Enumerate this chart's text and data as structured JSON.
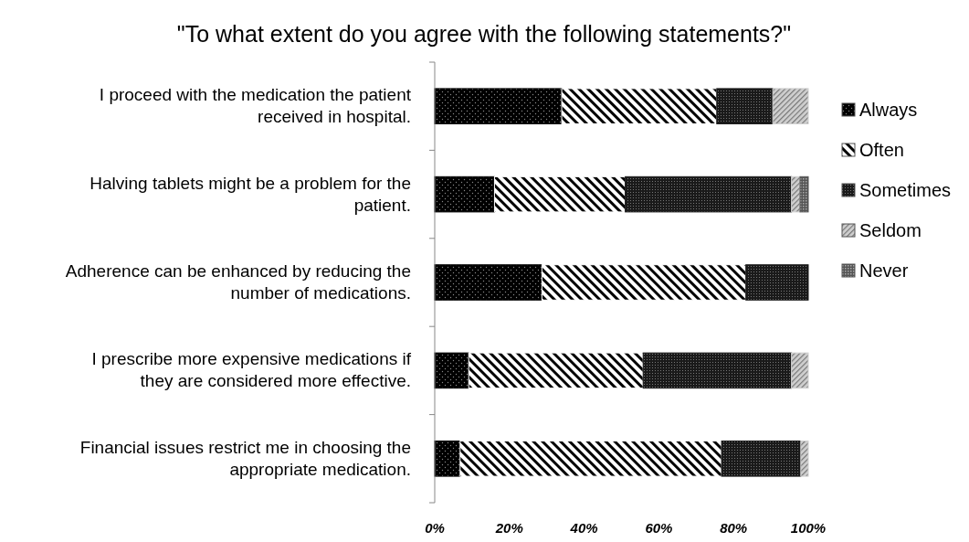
{
  "chart_data": {
    "type": "bar",
    "orientation": "horizontal",
    "stacked": true,
    "title": "\"To what extent do you agree with the following statements?\"",
    "categories": [
      "I proceed with the medication the patient received in hospital.",
      "Halving tablets might be a problem for the patient.",
      "Adherence can be enhanced by reducing the number of medications.",
      "I prescribe more expensive medications if they are considered more effective.",
      "Financial issues restrict me in choosing the appropriate medication."
    ],
    "series": [
      {
        "name": "Always",
        "color": "#000000",
        "values": [
          34,
          16,
          28.7,
          9.1,
          6.8
        ]
      },
      {
        "name": "Often",
        "color": "#ffffff",
        "values": [
          41.5,
          35,
          54.6,
          46.7,
          70
        ]
      },
      {
        "name": "Sometimes",
        "color": "#1a1a1a",
        "values": [
          15,
          44.5,
          16.7,
          39.7,
          21.2
        ]
      },
      {
        "name": "Seldom",
        "color": "#d0d0d0",
        "values": [
          9.5,
          2.3,
          null,
          4.5,
          2
        ]
      },
      {
        "name": "Never",
        "color": "#555555",
        "values": [
          null,
          2.2,
          null,
          null,
          null
        ]
      }
    ],
    "xlim": [
      0,
      100
    ],
    "xticks": [
      {
        "value": 0,
        "label": "0%"
      },
      {
        "value": 20,
        "label": "20%"
      },
      {
        "value": 40,
        "label": "40%"
      },
      {
        "value": 60,
        "label": "60%"
      },
      {
        "value": 80,
        "label": "80%"
      },
      {
        "value": 100,
        "label": "100%"
      }
    ],
    "grid": false,
    "legend": "right"
  }
}
